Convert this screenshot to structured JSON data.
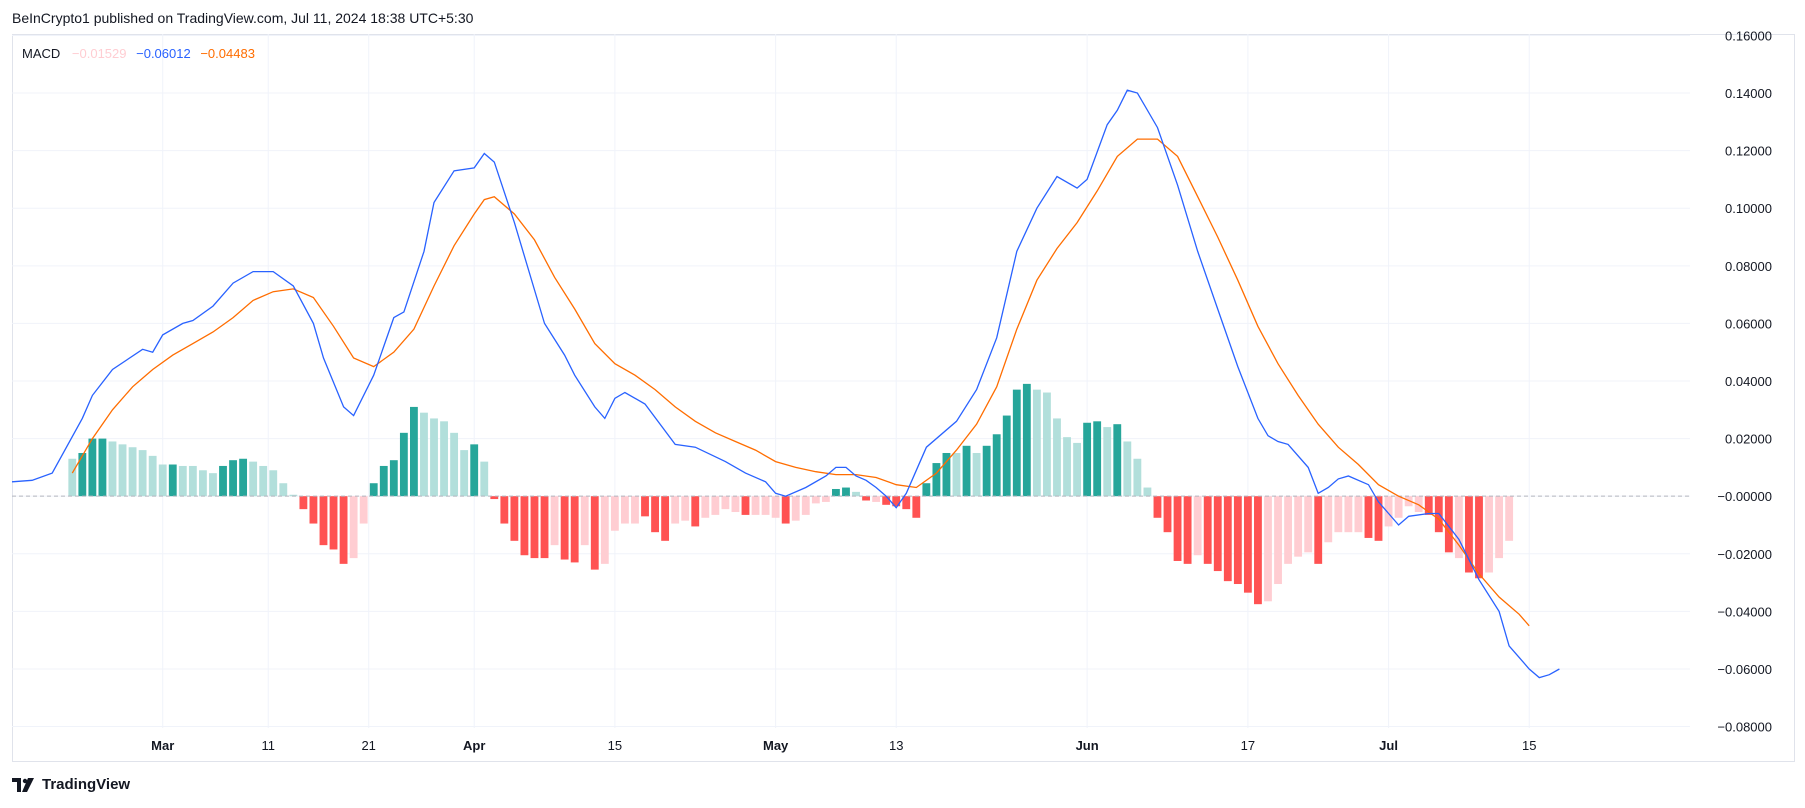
{
  "header": {
    "attribution": "BeInCrypto1 published on TradingView.com, Jul 11, 2024 18:38 UTC+5:30"
  },
  "legend": {
    "name": "MACD",
    "hist_value": "−0.01529",
    "macd_value": "−0.06012",
    "signal_value": "−0.04483"
  },
  "footer": {
    "brand": "TradingView"
  },
  "colors": {
    "macd": "#2962ff",
    "signal": "#ff6d00",
    "hist_pos_strong": "#26a69a",
    "hist_pos_weak": "#b2dfdb",
    "hist_neg_strong": "#ff5252",
    "hist_neg_weak": "#ffcdd2",
    "grid": "#f0f3fa",
    "zero": "#b2b5be"
  },
  "chart_data": {
    "type": "bar",
    "y_axis_labels": [
      "0.16000",
      "0.14000",
      "0.12000",
      "0.10000",
      "0.08000",
      "0.06000",
      "0.04000",
      "0.02000",
      "−0.00000",
      "−0.02000",
      "−0.04000",
      "−0.06000",
      "−0.08000"
    ],
    "y_ticks": [
      0.16,
      0.14,
      0.12,
      0.1,
      0.08,
      0.06,
      0.04,
      0.02,
      0,
      -0.02,
      -0.04,
      -0.06,
      -0.08
    ],
    "ylim": [
      -0.0805,
      0.1605
    ],
    "x_labels": [
      {
        "label": "Mar",
        "day": 14,
        "bold": true
      },
      {
        "label": "11",
        "day": 24.5,
        "bold": false
      },
      {
        "label": "21",
        "day": 34.5,
        "bold": false
      },
      {
        "label": "Apr",
        "day": 45,
        "bold": true
      },
      {
        "label": "15",
        "day": 59,
        "bold": false
      },
      {
        "label": "May",
        "day": 75,
        "bold": true
      },
      {
        "label": "13",
        "day": 87,
        "bold": false
      },
      {
        "label": "Jun",
        "day": 106,
        "bold": true
      },
      {
        "label": "17",
        "day": 122,
        "bold": false
      },
      {
        "label": "Jul",
        "day": 136,
        "bold": true
      },
      {
        "label": "15",
        "day": 150,
        "bold": false
      }
    ],
    "xlim": [
      -1,
      166
    ],
    "macd": [
      [
        -1,
        0.005
      ],
      [
        1,
        0.0055
      ],
      [
        3,
        0.008
      ],
      [
        6,
        0.027
      ],
      [
        7,
        0.035
      ],
      [
        9,
        0.044
      ],
      [
        12,
        0.051
      ],
      [
        13,
        0.05
      ],
      [
        14,
        0.056
      ],
      [
        16,
        0.06
      ],
      [
        17,
        0.061
      ],
      [
        19,
        0.066
      ],
      [
        21,
        0.074
      ],
      [
        23,
        0.078
      ],
      [
        25,
        0.078
      ],
      [
        27,
        0.073
      ],
      [
        29,
        0.06
      ],
      [
        30,
        0.048
      ],
      [
        32,
        0.031
      ],
      [
        33,
        0.028
      ],
      [
        35,
        0.042
      ],
      [
        37,
        0.062
      ],
      [
        38,
        0.064
      ],
      [
        40,
        0.085
      ],
      [
        41,
        0.102
      ],
      [
        43,
        0.113
      ],
      [
        45,
        0.114
      ],
      [
        46,
        0.119
      ],
      [
        47,
        0.116
      ],
      [
        49,
        0.095
      ],
      [
        52,
        0.06
      ],
      [
        54,
        0.049
      ],
      [
        55,
        0.042
      ],
      [
        57,
        0.031
      ],
      [
        58,
        0.027
      ],
      [
        59,
        0.034
      ],
      [
        60,
        0.036
      ],
      [
        62,
        0.032
      ],
      [
        65,
        0.018
      ],
      [
        67,
        0.017
      ],
      [
        70,
        0.012
      ],
      [
        72,
        0.008
      ],
      [
        74,
        0.005
      ],
      [
        75,
        0.001
      ],
      [
        76,
        0.0
      ],
      [
        78,
        0.003
      ],
      [
        80,
        0.007
      ],
      [
        81,
        0.01
      ],
      [
        82,
        0.01
      ],
      [
        83,
        0.007
      ],
      [
        84,
        0.0055
      ],
      [
        85,
        0.003
      ],
      [
        86,
        0.0
      ],
      [
        87,
        -0.004
      ],
      [
        88,
        0.001
      ],
      [
        90,
        0.017
      ],
      [
        93,
        0.026
      ],
      [
        95,
        0.037
      ],
      [
        97,
        0.055
      ],
      [
        99,
        0.085
      ],
      [
        101,
        0.1
      ],
      [
        103,
        0.111
      ],
      [
        105,
        0.107
      ],
      [
        106,
        0.11
      ],
      [
        108,
        0.129
      ],
      [
        109,
        0.134
      ],
      [
        110,
        0.141
      ],
      [
        111,
        0.14
      ],
      [
        113,
        0.128
      ],
      [
        115,
        0.108
      ],
      [
        117,
        0.085
      ],
      [
        119,
        0.065
      ],
      [
        121,
        0.045
      ],
      [
        123,
        0.027
      ],
      [
        124,
        0.021
      ],
      [
        125,
        0.019
      ],
      [
        126,
        0.018
      ],
      [
        128,
        0.01
      ],
      [
        129,
        0.001
      ],
      [
        130,
        0.003
      ],
      [
        131,
        0.006
      ],
      [
        132,
        0.007
      ],
      [
        134,
        0.004
      ],
      [
        135,
        -0.002
      ],
      [
        136,
        -0.006
      ],
      [
        137,
        -0.01
      ],
      [
        138,
        -0.007
      ],
      [
        140,
        -0.006
      ],
      [
        141,
        -0.006
      ],
      [
        143,
        -0.015
      ],
      [
        145,
        -0.029
      ],
      [
        147,
        -0.04
      ],
      [
        148,
        -0.052
      ],
      [
        150,
        -0.06
      ],
      [
        151,
        -0.063
      ],
      [
        152,
        -0.062
      ],
      [
        153,
        -0.06
      ]
    ],
    "signal": [
      [
        5,
        0.008
      ],
      [
        7,
        0.02
      ],
      [
        9,
        0.03
      ],
      [
        11,
        0.038
      ],
      [
        13,
        0.044
      ],
      [
        15,
        0.049
      ],
      [
        17,
        0.053
      ],
      [
        19,
        0.057
      ],
      [
        21,
        0.062
      ],
      [
        23,
        0.068
      ],
      [
        25,
        0.071
      ],
      [
        27,
        0.072
      ],
      [
        29,
        0.069
      ],
      [
        31,
        0.059
      ],
      [
        33,
        0.048
      ],
      [
        35,
        0.045
      ],
      [
        37,
        0.05
      ],
      [
        39,
        0.058
      ],
      [
        41,
        0.073
      ],
      [
        43,
        0.087
      ],
      [
        45,
        0.098
      ],
      [
        46,
        0.103
      ],
      [
        47,
        0.104
      ],
      [
        49,
        0.098
      ],
      [
        51,
        0.089
      ],
      [
        53,
        0.076
      ],
      [
        55,
        0.065
      ],
      [
        57,
        0.053
      ],
      [
        59,
        0.046
      ],
      [
        61,
        0.042
      ],
      [
        63,
        0.037
      ],
      [
        65,
        0.031
      ],
      [
        67,
        0.026
      ],
      [
        69,
        0.022
      ],
      [
        71,
        0.019
      ],
      [
        73,
        0.016
      ],
      [
        75,
        0.012
      ],
      [
        77,
        0.01
      ],
      [
        79,
        0.0085
      ],
      [
        81,
        0.0075
      ],
      [
        83,
        0.0075
      ],
      [
        85,
        0.0065
      ],
      [
        87,
        0.004
      ],
      [
        89,
        0.003
      ],
      [
        91,
        0.008
      ],
      [
        93,
        0.016
      ],
      [
        95,
        0.025
      ],
      [
        97,
        0.038
      ],
      [
        99,
        0.058
      ],
      [
        101,
        0.075
      ],
      [
        103,
        0.086
      ],
      [
        105,
        0.095
      ],
      [
        107,
        0.106
      ],
      [
        109,
        0.118
      ],
      [
        111,
        0.124
      ],
      [
        113,
        0.124
      ],
      [
        115,
        0.118
      ],
      [
        117,
        0.104
      ],
      [
        119,
        0.09
      ],
      [
        121,
        0.075
      ],
      [
        123,
        0.059
      ],
      [
        125,
        0.046
      ],
      [
        127,
        0.035
      ],
      [
        129,
        0.025
      ],
      [
        131,
        0.017
      ],
      [
        133,
        0.011
      ],
      [
        135,
        0.004
      ],
      [
        137,
        0.0
      ],
      [
        139,
        -0.003
      ],
      [
        141,
        -0.008
      ],
      [
        143,
        -0.017
      ],
      [
        145,
        -0.027
      ],
      [
        147,
        -0.035
      ],
      [
        149,
        -0.041
      ],
      [
        150,
        -0.045
      ]
    ],
    "histogram": [
      [
        5,
        0.013,
        "w"
      ],
      [
        6,
        0.015,
        "s"
      ],
      [
        7,
        0.02,
        "s"
      ],
      [
        8,
        0.02,
        "s"
      ],
      [
        9,
        0.019,
        "w"
      ],
      [
        10,
        0.018,
        "w"
      ],
      [
        11,
        0.017,
        "w"
      ],
      [
        12,
        0.016,
        "w"
      ],
      [
        13,
        0.014,
        "w"
      ],
      [
        14,
        0.011,
        "w"
      ],
      [
        15,
        0.011,
        "s"
      ],
      [
        16,
        0.0105,
        "w"
      ],
      [
        17,
        0.0105,
        "w"
      ],
      [
        18,
        0.009,
        "w"
      ],
      [
        19,
        0.008,
        "w"
      ],
      [
        20,
        0.0105,
        "s"
      ],
      [
        21,
        0.0125,
        "s"
      ],
      [
        22,
        0.013,
        "s"
      ],
      [
        23,
        0.012,
        "w"
      ],
      [
        24,
        0.0105,
        "w"
      ],
      [
        25,
        0.009,
        "w"
      ],
      [
        26,
        0.0045,
        "w"
      ],
      [
        27,
        0.0005,
        "w"
      ],
      [
        28,
        -0.0045,
        "s"
      ],
      [
        29,
        -0.0095,
        "s"
      ],
      [
        30,
        -0.017,
        "s"
      ],
      [
        31,
        -0.0185,
        "s"
      ],
      [
        32,
        -0.0235,
        "s"
      ],
      [
        33,
        -0.0215,
        "w"
      ],
      [
        34,
        -0.0095,
        "w"
      ],
      [
        35,
        0.0045,
        "s"
      ],
      [
        36,
        0.0105,
        "s"
      ],
      [
        37,
        0.0125,
        "s"
      ],
      [
        38,
        0.022,
        "s"
      ],
      [
        39,
        0.031,
        "s"
      ],
      [
        40,
        0.029,
        "w"
      ],
      [
        41,
        0.027,
        "w"
      ],
      [
        42,
        0.026,
        "w"
      ],
      [
        43,
        0.022,
        "w"
      ],
      [
        44,
        0.016,
        "w"
      ],
      [
        45,
        0.018,
        "s"
      ],
      [
        46,
        0.012,
        "w"
      ],
      [
        47,
        -0.001,
        "s"
      ],
      [
        48,
        -0.0095,
        "s"
      ],
      [
        49,
        -0.0155,
        "s"
      ],
      [
        50,
        -0.0205,
        "s"
      ],
      [
        51,
        -0.0215,
        "s"
      ],
      [
        52,
        -0.0215,
        "s"
      ],
      [
        53,
        -0.017,
        "w"
      ],
      [
        54,
        -0.022,
        "s"
      ],
      [
        55,
        -0.023,
        "s"
      ],
      [
        56,
        -0.017,
        "w"
      ],
      [
        57,
        -0.0255,
        "s"
      ],
      [
        58,
        -0.0235,
        "w"
      ],
      [
        59,
        -0.012,
        "w"
      ],
      [
        60,
        -0.0095,
        "w"
      ],
      [
        61,
        -0.0095,
        "w"
      ],
      [
        62,
        -0.007,
        "s"
      ],
      [
        63,
        -0.0125,
        "s"
      ],
      [
        64,
        -0.0155,
        "s"
      ],
      [
        65,
        -0.0095,
        "w"
      ],
      [
        66,
        -0.0085,
        "w"
      ],
      [
        67,
        -0.0105,
        "s"
      ],
      [
        68,
        -0.0075,
        "w"
      ],
      [
        69,
        -0.0065,
        "w"
      ],
      [
        70,
        -0.0045,
        "w"
      ],
      [
        71,
        -0.0055,
        "w"
      ],
      [
        72,
        -0.0065,
        "s"
      ],
      [
        73,
        -0.0065,
        "w"
      ],
      [
        74,
        -0.0065,
        "w"
      ],
      [
        75,
        -0.0075,
        "w"
      ],
      [
        76,
        -0.0095,
        "s"
      ],
      [
        77,
        -0.0085,
        "w"
      ],
      [
        78,
        -0.0065,
        "w"
      ],
      [
        79,
        -0.0025,
        "w"
      ],
      [
        80,
        -0.002,
        "w"
      ],
      [
        81,
        0.0025,
        "s"
      ],
      [
        82,
        0.003,
        "s"
      ],
      [
        83,
        0.0015,
        "w"
      ],
      [
        84,
        -0.0015,
        "s"
      ],
      [
        85,
        -0.002,
        "w"
      ],
      [
        86,
        -0.003,
        "s"
      ],
      [
        87,
        -0.0035,
        "s"
      ],
      [
        88,
        -0.0045,
        "s"
      ],
      [
        89,
        -0.0075,
        "s"
      ],
      [
        90,
        0.0045,
        "s"
      ],
      [
        91,
        0.0115,
        "s"
      ],
      [
        92,
        0.015,
        "s"
      ],
      [
        93,
        0.015,
        "w"
      ],
      [
        94,
        0.0175,
        "s"
      ],
      [
        95,
        0.015,
        "w"
      ],
      [
        96,
        0.0175,
        "s"
      ],
      [
        97,
        0.0215,
        "s"
      ],
      [
        98,
        0.028,
        "s"
      ],
      [
        99,
        0.037,
        "s"
      ],
      [
        100,
        0.039,
        "s"
      ],
      [
        101,
        0.037,
        "w"
      ],
      [
        102,
        0.036,
        "w"
      ],
      [
        103,
        0.027,
        "w"
      ],
      [
        104,
        0.0205,
        "w"
      ],
      [
        105,
        0.0185,
        "w"
      ],
      [
        106,
        0.0255,
        "s"
      ],
      [
        107,
        0.026,
        "s"
      ],
      [
        108,
        0.024,
        "w"
      ],
      [
        109,
        0.025,
        "s"
      ],
      [
        110,
        0.019,
        "w"
      ],
      [
        111,
        0.013,
        "w"
      ],
      [
        112,
        0.003,
        "w"
      ],
      [
        113,
        -0.0075,
        "s"
      ],
      [
        114,
        -0.0125,
        "s"
      ],
      [
        115,
        -0.0225,
        "s"
      ],
      [
        116,
        -0.0235,
        "s"
      ],
      [
        117,
        -0.0205,
        "w"
      ],
      [
        118,
        -0.0235,
        "s"
      ],
      [
        119,
        -0.026,
        "s"
      ],
      [
        120,
        -0.0295,
        "s"
      ],
      [
        121,
        -0.0305,
        "s"
      ],
      [
        122,
        -0.0335,
        "s"
      ],
      [
        123,
        -0.0375,
        "s"
      ],
      [
        124,
        -0.0365,
        "w"
      ],
      [
        125,
        -0.0305,
        "w"
      ],
      [
        126,
        -0.0235,
        "w"
      ],
      [
        127,
        -0.021,
        "w"
      ],
      [
        128,
        -0.0195,
        "w"
      ],
      [
        129,
        -0.0235,
        "s"
      ],
      [
        130,
        -0.016,
        "w"
      ],
      [
        131,
        -0.0125,
        "w"
      ],
      [
        132,
        -0.0125,
        "w"
      ],
      [
        133,
        -0.0125,
        "w"
      ],
      [
        134,
        -0.0145,
        "s"
      ],
      [
        135,
        -0.0155,
        "s"
      ],
      [
        136,
        -0.0105,
        "w"
      ],
      [
        137,
        -0.0075,
        "w"
      ],
      [
        138,
        -0.0035,
        "w"
      ],
      [
        139,
        -0.0055,
        "w"
      ],
      [
        140,
        -0.0065,
        "s"
      ],
      [
        141,
        -0.0125,
        "s"
      ],
      [
        142,
        -0.0195,
        "s"
      ],
      [
        143,
        -0.0215,
        "w"
      ],
      [
        144,
        -0.0265,
        "s"
      ],
      [
        145,
        -0.0285,
        "s"
      ],
      [
        146,
        -0.0265,
        "w"
      ],
      [
        147,
        -0.0215,
        "w"
      ],
      [
        148,
        -0.0155,
        "w"
      ]
    ]
  }
}
